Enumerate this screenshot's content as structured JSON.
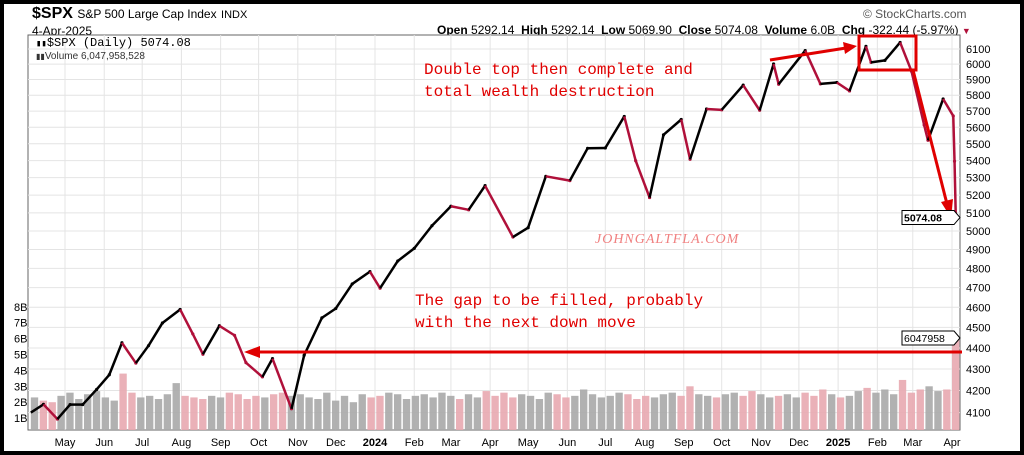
{
  "header": {
    "symbol": "$SPX",
    "name": "S&P 500 Large Cap Index",
    "exchange": "INDX",
    "date": "4-Apr-2025",
    "copyright": "© StockCharts.com",
    "open_label": "Open",
    "open": "5292.14",
    "high_label": "High",
    "high": "5292.14",
    "low_label": "Low",
    "low": "5069.90",
    "close_label": "Close",
    "close": "5074.08",
    "volume_label": "Volume",
    "volume": "6.0B",
    "chg_label": "Chg",
    "chg": "-322.44 (-5.97%)"
  },
  "legend": {
    "price": "$SPX (Daily) 5074.08",
    "volume": "Volume 6,047,958,528"
  },
  "annotations": {
    "top_line1": "Double top then complete and",
    "top_line2": "total wealth destruction",
    "gap_line1": "The gap to be filled, probably",
    "gap_line2": "with the next down move",
    "watermark": "JOHNGALTFLA.COM"
  },
  "colors": {
    "up": "#000000",
    "down": "#b0103a",
    "vol_up": "#a8a8a8",
    "vol_down": "#e8a8b0",
    "annotation": "#e00000"
  },
  "chart_data": {
    "type": "line",
    "title": "$SPX (Daily)",
    "scale": "log",
    "ylim": [
      4000,
      6200
    ],
    "price_ticks": [
      6100,
      6000,
      5900,
      5800,
      5700,
      5600,
      5500,
      5400,
      5300,
      5200,
      5100,
      5000,
      4900,
      4800,
      4700,
      4600,
      4500,
      4400,
      4300,
      4200,
      4100
    ],
    "volume_ticks": [
      "1B",
      "2B",
      "3B",
      "4B",
      "5B",
      "6B",
      "7B",
      "8B"
    ],
    "volume_tick_values": [
      1,
      2,
      3,
      4,
      5,
      6,
      7,
      8
    ],
    "x_ticks": [
      {
        "label": "May",
        "date": "2023-05-01"
      },
      {
        "label": "Jun",
        "date": "2023-06-01"
      },
      {
        "label": "Jul",
        "date": "2023-07-01"
      },
      {
        "label": "Aug",
        "date": "2023-08-01"
      },
      {
        "label": "Sep",
        "date": "2023-09-01"
      },
      {
        "label": "Oct",
        "date": "2023-10-01"
      },
      {
        "label": "Nov",
        "date": "2023-11-01"
      },
      {
        "label": "Dec",
        "date": "2023-12-01"
      },
      {
        "label": "2024",
        "date": "2024-01-01",
        "bold": true
      },
      {
        "label": "Feb",
        "date": "2024-02-01"
      },
      {
        "label": "Mar",
        "date": "2024-03-01"
      },
      {
        "label": "Apr",
        "date": "2024-04-01"
      },
      {
        "label": "May",
        "date": "2024-05-01"
      },
      {
        "label": "Jun",
        "date": "2024-06-01"
      },
      {
        "label": "Jul",
        "date": "2024-07-01"
      },
      {
        "label": "Aug",
        "date": "2024-08-01"
      },
      {
        "label": "Sep",
        "date": "2024-09-01"
      },
      {
        "label": "Oct",
        "date": "2024-10-01"
      },
      {
        "label": "Nov",
        "date": "2024-11-01"
      },
      {
        "label": "Dec",
        "date": "2024-12-01"
      },
      {
        "label": "2025",
        "date": "2025-01-01",
        "bold": true
      },
      {
        "label": "Feb",
        "date": "2025-02-01"
      },
      {
        "label": "Mar",
        "date": "2025-03-01"
      },
      {
        "label": "Apr",
        "date": "2025-04-01"
      }
    ],
    "price_series": [
      [
        "2023-04-04",
        4100
      ],
      [
        "2023-04-14",
        4137
      ],
      [
        "2023-04-25",
        4071
      ],
      [
        "2023-05-05",
        4136
      ],
      [
        "2023-05-15",
        4136
      ],
      [
        "2023-05-26",
        4205
      ],
      [
        "2023-06-05",
        4273
      ],
      [
        "2023-06-15",
        4425
      ],
      [
        "2023-06-26",
        4328
      ],
      [
        "2023-07-06",
        4411
      ],
      [
        "2023-07-17",
        4522
      ],
      [
        "2023-07-31",
        4589
      ],
      [
        "2023-08-10",
        4468
      ],
      [
        "2023-08-18",
        4370
      ],
      [
        "2023-08-31",
        4508
      ],
      [
        "2023-09-12",
        4461
      ],
      [
        "2023-09-21",
        4330
      ],
      [
        "2023-10-04",
        4263
      ],
      [
        "2023-10-12",
        4349
      ],
      [
        "2023-10-27",
        4117
      ],
      [
        "2023-11-06",
        4365
      ],
      [
        "2023-11-20",
        4547
      ],
      [
        "2023-12-01",
        4594
      ],
      [
        "2023-12-14",
        4719
      ],
      [
        "2023-12-28",
        4783
      ],
      [
        "2024-01-05",
        4697
      ],
      [
        "2024-01-19",
        4839
      ],
      [
        "2024-02-01",
        4906
      ],
      [
        "2024-02-15",
        5029
      ],
      [
        "2024-03-01",
        5137
      ],
      [
        "2024-03-15",
        5117
      ],
      [
        "2024-03-28",
        5254
      ],
      [
        "2024-04-19",
        4967
      ],
      [
        "2024-05-01",
        5018
      ],
      [
        "2024-05-15",
        5308
      ],
      [
        "2024-06-03",
        5283
      ],
      [
        "2024-06-17",
        5473
      ],
      [
        "2024-07-01",
        5475
      ],
      [
        "2024-07-16",
        5667
      ],
      [
        "2024-07-25",
        5399
      ],
      [
        "2024-08-05",
        5186
      ],
      [
        "2024-08-16",
        5554
      ],
      [
        "2024-08-30",
        5648
      ],
      [
        "2024-09-06",
        5408
      ],
      [
        "2024-09-19",
        5713
      ],
      [
        "2024-10-01",
        5708
      ],
      [
        "2024-10-18",
        5864
      ],
      [
        "2024-10-31",
        5705
      ],
      [
        "2024-11-11",
        6001
      ],
      [
        "2024-11-15",
        5870
      ],
      [
        "2024-12-06",
        6090
      ],
      [
        "2024-12-18",
        5872
      ],
      [
        "2024-12-31",
        5881
      ],
      [
        "2025-01-10",
        5827
      ],
      [
        "2025-01-23",
        6118
      ],
      [
        "2025-01-27",
        6012
      ],
      [
        "2025-02-07",
        6025
      ],
      [
        "2025-02-19",
        6144
      ],
      [
        "2025-02-28",
        5954
      ],
      [
        "2025-03-10",
        5614
      ],
      [
        "2025-03-13",
        5521
      ],
      [
        "2025-03-25",
        5776
      ],
      [
        "2025-04-02",
        5670
      ],
      [
        "2025-04-03",
        5396
      ],
      [
        "2025-04-04",
        5074
      ]
    ],
    "volume_unit": "B",
    "volume_start": "2023-04-04",
    "volume_weekly": [
      2.3,
      2.1,
      2.0,
      2.4,
      2.6,
      2.2,
      2.5,
      2.7,
      2.3,
      2.1,
      3.8,
      2.6,
      2.3,
      2.4,
      2.2,
      2.5,
      3.2,
      2.4,
      2.3,
      2.2,
      2.4,
      2.3,
      2.6,
      2.5,
      2.2,
      2.4,
      2.3,
      2.5,
      2.6,
      2.4,
      2.5,
      2.3,
      2.2,
      2.6,
      2.1,
      2.4,
      2.0,
      2.5,
      2.3,
      2.4,
      2.6,
      2.5,
      2.2,
      2.4,
      2.5,
      2.3,
      2.6,
      2.4,
      2.2,
      2.5,
      2.3,
      2.7,
      2.4,
      2.6,
      2.3,
      2.5,
      2.4,
      2.2,
      2.6,
      2.5,
      2.3,
      2.4,
      2.8,
      2.5,
      2.3,
      2.4,
      2.6,
      2.5,
      2.2,
      2.4,
      2.3,
      2.5,
      2.6,
      2.4,
      3.0,
      2.5,
      2.4,
      2.3,
      2.5,
      2.6,
      2.4,
      2.7,
      2.5,
      2.3,
      2.4,
      2.5,
      2.3,
      2.6,
      2.4,
      2.8,
      2.5,
      2.3,
      2.4,
      2.7,
      2.9,
      2.6,
      2.8,
      2.5,
      3.4,
      2.6,
      2.8,
      3.0,
      2.7,
      2.8,
      6.0
    ]
  },
  "value_tags": {
    "price": "5074.08",
    "volume": "6047958"
  }
}
